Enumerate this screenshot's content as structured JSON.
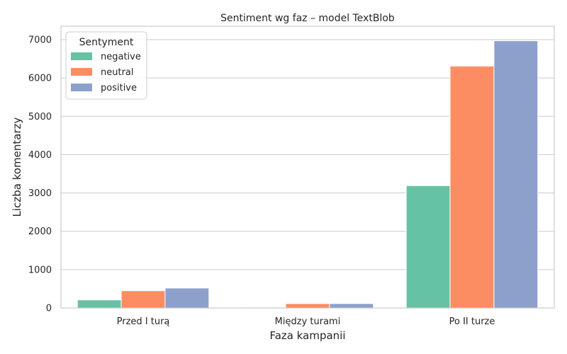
{
  "chart_data": {
    "type": "bar",
    "title": "Sentiment wg faz – model TextBlob",
    "xlabel": "Faza kampanii",
    "ylabel": "Liczba komentarzy",
    "categories": [
      "Przed I turą",
      "Między turami",
      "Po II turze"
    ],
    "series": [
      {
        "name": "negative",
        "color": "#66c2a5",
        "values": [
          210,
          20,
          3190
        ]
      },
      {
        "name": "neutral",
        "color": "#fc8d62",
        "values": [
          450,
          115,
          6310
        ]
      },
      {
        "name": "positive",
        "color": "#8da0cb",
        "values": [
          520,
          115,
          6970
        ]
      }
    ],
    "ylim": [
      0,
      7350
    ],
    "yticks": [
      0,
      1000,
      2000,
      3000,
      4000,
      5000,
      6000,
      7000
    ],
    "grid": "horizontal",
    "legend": {
      "title": "Sentyment",
      "placement": "top-left"
    }
  }
}
